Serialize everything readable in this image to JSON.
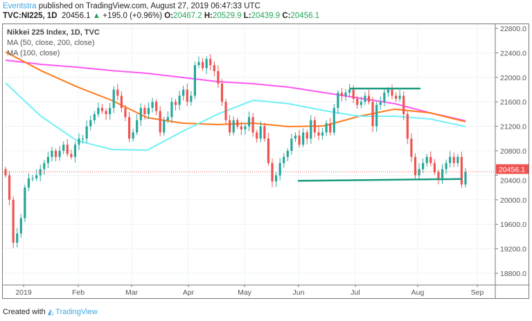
{
  "header": {
    "author": "Eventstra",
    "published": "published on TradingView.com, August 27, 2019 06:47:33 UTC",
    "symbol": "TVC:NI225, 1D",
    "last": "20456.1",
    "change": "+195.0 (+0.96%)",
    "o_label": "O:",
    "o": "20467.2",
    "h_label": "H:",
    "h": "20529.9",
    "l_label": "L:",
    "l": "20439.9",
    "c_label": "C:",
    "c": "20456.1"
  },
  "legend": {
    "title": "Nikkei 225 Index, 1D, TVC",
    "ma1": "MA (50, close, 200, close)",
    "ma2": "MA (100, close)"
  },
  "footer": {
    "created": "Created with",
    "brand": "TradingView"
  },
  "chart_data": {
    "type": "candlestick",
    "ylim": [
      18600,
      22900
    ],
    "yticks": [
      "22800.0",
      "22400.0",
      "22000.0",
      "21600.0",
      "21200.0",
      "20800.0",
      "20400.0",
      "20000.0",
      "19600.0",
      "19200.0",
      "18800.0"
    ],
    "xticks": [
      "2019",
      "Feb",
      "Mar",
      "Apr",
      "May",
      "Jun",
      "Jul",
      "Aug",
      "Sep"
    ],
    "closes": [
      20400,
      20000,
      19300,
      19450,
      19700,
      20200,
      20350,
      20350,
      20400,
      20500,
      20600,
      20700,
      20800,
      20700,
      20800,
      20900,
      20750,
      20700,
      20900,
      21000,
      21000,
      21200,
      21300,
      21400,
      21500,
      21450,
      21400,
      21500,
      21800,
      21700,
      21500,
      21350,
      21000,
      21100,
      21300,
      21500,
      21400,
      21500,
      21600,
      21450,
      21100,
      21300,
      21350,
      21600,
      21550,
      21700,
      21800,
      21600,
      21700,
      22200,
      22250,
      22150,
      22300,
      22200,
      22100,
      21900,
      21600,
      21300,
      21100,
      21300,
      21200,
      21150,
      21200,
      21350,
      21100,
      21000,
      21200,
      21000,
      20600,
      20300,
      20400,
      20600,
      20700,
      20800,
      21000,
      21050,
      20900,
      21100,
      21000,
      21300,
      21100,
      21050,
      21100,
      21250,
      21100,
      21500,
      21750,
      21700,
      21750,
      21800,
      21650,
      21550,
      21600,
      21700,
      21600,
      21200,
      21550,
      21600,
      21750,
      21800,
      21700,
      21650,
      21700,
      21400,
      21000,
      20700,
      20400,
      20500,
      20600,
      20700,
      20600,
      20450,
      20350,
      20500,
      20600,
      20700,
      20600,
      20700,
      20250,
      20456.1
    ],
    "last_price": "20456.1",
    "ma_50": [
      21907,
      21365,
      20970,
      20823,
      20811,
      21116,
      21400,
      21626,
      21570,
      21457,
      21365,
      21365,
      21320,
      21196
    ],
    "ma_100": [
      22416,
      22110,
      21850,
      21625,
      21342,
      21252,
      21230,
      21252,
      21195,
      21207,
      21365,
      21480,
      21420,
      21275
    ],
    "ma_200": [
      22280,
      22212,
      22167,
      22110,
      22065,
      21998,
      21930,
      21896,
      21840,
      21750,
      21660,
      21570,
      21420,
      21290
    ],
    "resistance_level": 21817,
    "support_level": [
      20310,
      20340
    ],
    "colors": {
      "up": "#26a69a",
      "down": "#ef5350",
      "ma_50": "#6ff0f7",
      "ma_100": "#ff7a1a",
      "ma_200": "#ff55f2",
      "trend": "#1a9a80",
      "last": "#ef5350"
    }
  }
}
